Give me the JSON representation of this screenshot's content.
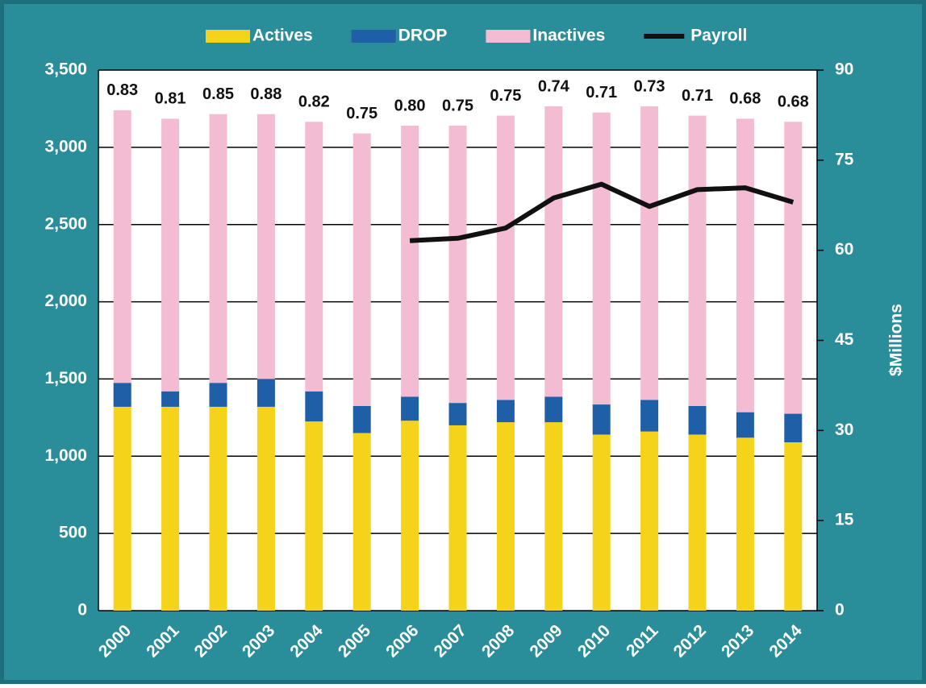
{
  "chart_data": {
    "type": "bar",
    "categories": [
      "2000",
      "2001",
      "2002",
      "2003",
      "2004",
      "2005",
      "2006",
      "2007",
      "2008",
      "2009",
      "2010",
      "2011",
      "2012",
      "2013",
      "2014"
    ],
    "series": [
      {
        "name": "Actives",
        "color": "#f5d31a",
        "values": [
          1320,
          1320,
          1320,
          1320,
          1225,
          1150,
          1230,
          1200,
          1220,
          1220,
          1140,
          1160,
          1140,
          1120,
          1090
        ]
      },
      {
        "name": "DROP",
        "color": "#1f5fa8",
        "values": [
          155,
          100,
          155,
          180,
          195,
          175,
          155,
          145,
          145,
          165,
          195,
          205,
          185,
          165,
          185
        ]
      },
      {
        "name": "Inactives",
        "color": "#f4bcd3",
        "values": [
          1765,
          1765,
          1740,
          1715,
          1745,
          1765,
          1755,
          1795,
          1840,
          1880,
          1890,
          1900,
          1880,
          1900,
          1890
        ]
      },
      {
        "name": "Payroll",
        "color": "#111111",
        "type": "line",
        "axis": "y2",
        "values": [
          null,
          null,
          null,
          null,
          null,
          null,
          61.6,
          62,
          63.7,
          68.7,
          71,
          67.3,
          70.1,
          70.4,
          68
        ]
      }
    ],
    "annotations": [
      "0.83",
      "0.81",
      "0.85",
      "0.88",
      "0.82",
      "0.75",
      "0.80",
      "0.75",
      "0.75",
      "0.74",
      "0.71",
      "0.73",
      "0.71",
      "0.68",
      "0.68"
    ],
    "ylim": [
      0,
      3500
    ],
    "yticks": [
      0,
      500,
      {
        "value": 1000,
        "label": "1,000"
      },
      {
        "value": 1500,
        "label": "1,500"
      },
      {
        "value": 2000,
        "label": "2,000"
      },
      {
        "value": 2500,
        "label": "2,500"
      },
      {
        "value": 3000,
        "label": "3,000"
      },
      {
        "value": 3500,
        "label": "3,500"
      }
    ],
    "y2lim": [
      0,
      90
    ],
    "y2ticks": [
      0,
      15,
      30,
      45,
      60,
      75,
      90
    ],
    "y2label": "$Millions",
    "stacked": true,
    "grid": true,
    "legend": "top"
  }
}
